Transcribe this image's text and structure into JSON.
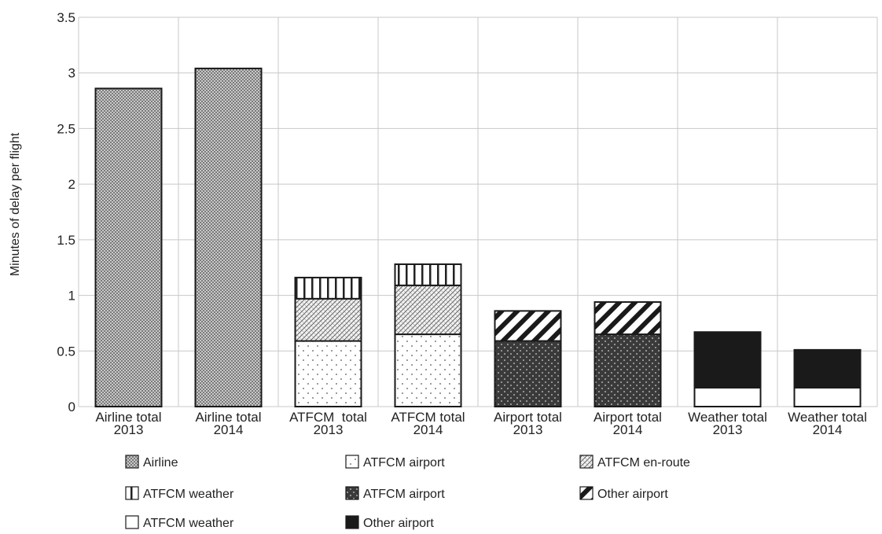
{
  "chart_data": {
    "type": "bar",
    "stacked": true,
    "ylabel": "Minutes of delay per flight",
    "xlabel": "",
    "ylim": [
      0,
      3.5
    ],
    "yticks": [
      "0",
      "0.5",
      "1",
      "1.5",
      "2",
      "2.5",
      "3",
      "3.5"
    ],
    "grid": true,
    "legend_position": "bottom",
    "categories": [
      [
        "Airline total",
        "2013"
      ],
      [
        "Airline total",
        "2014"
      ],
      [
        "ATFCM  total",
        "2013"
      ],
      [
        "ATFCM total",
        "2014"
      ],
      [
        "Airport total",
        "2013"
      ],
      [
        "Airport total",
        "2014"
      ],
      [
        "Weather total",
        "2013"
      ],
      [
        "Weather total",
        "2014"
      ]
    ],
    "series": [
      {
        "name": "Airline",
        "pattern": "checker",
        "values": [
          2.86,
          3.04,
          0,
          0,
          0,
          0,
          0,
          0
        ]
      },
      {
        "name": "ATFCM airport",
        "pattern": "light-dots",
        "values": [
          0,
          0,
          0.59,
          0.65,
          0,
          0,
          0,
          0
        ]
      },
      {
        "name": "ATFCM en-route",
        "pattern": "crosshatch",
        "values": [
          0,
          0,
          0.38,
          0.44,
          0,
          0,
          0,
          0
        ]
      },
      {
        "name": "ATFCM weather",
        "pattern": "vertical-stripes",
        "values": [
          0,
          0,
          0.19,
          0.19,
          0,
          0,
          0,
          0
        ]
      },
      {
        "name": "ATFCM airport",
        "pattern": "dark-dots",
        "values": [
          0,
          0,
          0,
          0,
          0.59,
          0.65,
          0,
          0
        ]
      },
      {
        "name": "Other airport",
        "pattern": "diagonal-stripes",
        "values": [
          0,
          0,
          0,
          0,
          0.27,
          0.29,
          0,
          0
        ]
      },
      {
        "name": "ATFCM weather",
        "pattern": "white",
        "values": [
          0,
          0,
          0,
          0,
          0,
          0,
          0.17,
          0.17
        ]
      },
      {
        "name": "Other airport",
        "pattern": "black",
        "values": [
          0,
          0,
          0,
          0,
          0,
          0,
          0.5,
          0.34
        ]
      }
    ],
    "legend": [
      {
        "label": "Airline",
        "pattern": "checker"
      },
      {
        "label": "ATFCM airport",
        "pattern": "light-dots"
      },
      {
        "label": "ATFCM en-route",
        "pattern": "crosshatch"
      },
      {
        "label": "ATFCM weather",
        "pattern": "vertical-stripes"
      },
      {
        "label": "ATFCM airport",
        "pattern": "dark-dots"
      },
      {
        "label": "Other airport",
        "pattern": "diagonal-stripes"
      },
      {
        "label": "ATFCM weather",
        "pattern": "white"
      },
      {
        "label": "Other airport",
        "pattern": "black"
      }
    ]
  }
}
